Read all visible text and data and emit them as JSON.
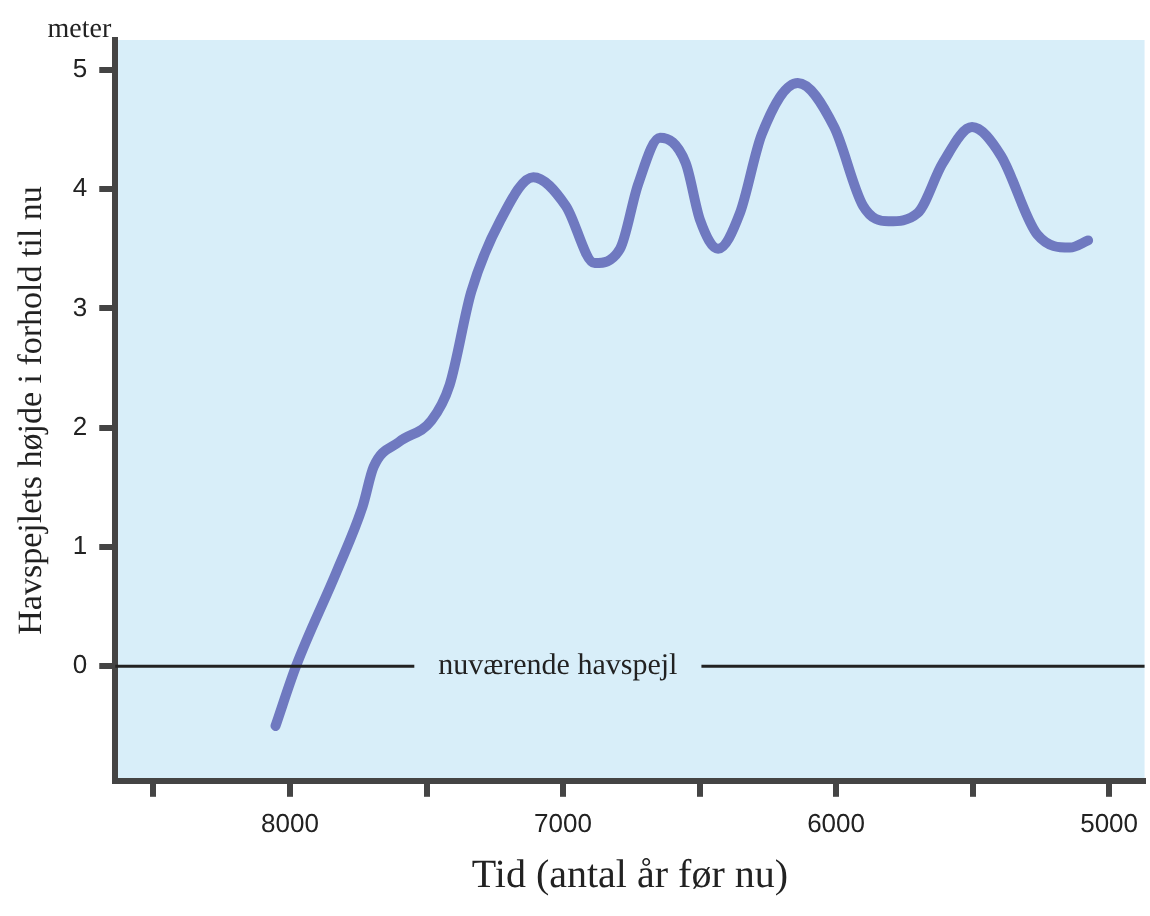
{
  "chart_data": {
    "type": "line",
    "xlabel": "Tid (antal år før nu)",
    "ylabel": "Havspejlets højde i forhold til nu",
    "annotations": [
      "meter"
    ],
    "x": [
      8053,
      7978,
      7828,
      7734,
      7694,
      7601,
      7482,
      7415,
      7336,
      7229,
      7109,
      6990,
      6884,
      6791,
      6725,
      6645,
      6551,
      6498,
      6432,
      6352,
      6272,
      6140,
      6007,
      5901,
      5808,
      5701,
      5609,
      5502,
      5396,
      5263,
      5143,
      5077
    ],
    "series": [
      {
        "color": "#6f79c0",
        "values": [
          -0.5,
          0,
          0.8,
          1.34,
          1.67,
          1.88,
          2.06,
          2.36,
          3.14,
          3.74,
          4.1,
          3.86,
          3.38,
          3.5,
          4.04,
          4.43,
          4.22,
          3.74,
          3.5,
          3.8,
          4.46,
          4.89,
          4.52,
          3.86,
          3.73,
          3.8,
          4.22,
          4.52,
          4.28,
          3.62,
          3.51,
          3.57
        ]
      }
    ],
    "xlim": [
      8640,
      4870
    ],
    "xticks": [
      {
        "value": 8500,
        "label": null
      },
      8000,
      {
        "value": 7500,
        "label": null
      },
      7000,
      {
        "value": 6500,
        "label": null
      },
      6000,
      {
        "value": 5500,
        "label": null
      },
      5000
    ],
    "ylim": [
      -0.96,
      5.25
    ],
    "yticks": [
      0,
      1,
      2,
      3,
      4,
      5
    ],
    "ref_lines": [
      {
        "axis": "y",
        "value": 0,
        "label": "nuværende havspejl",
        "color": "#222222"
      }
    ],
    "grid": false,
    "legend": false,
    "marker": "none",
    "line_style": "solid"
  }
}
